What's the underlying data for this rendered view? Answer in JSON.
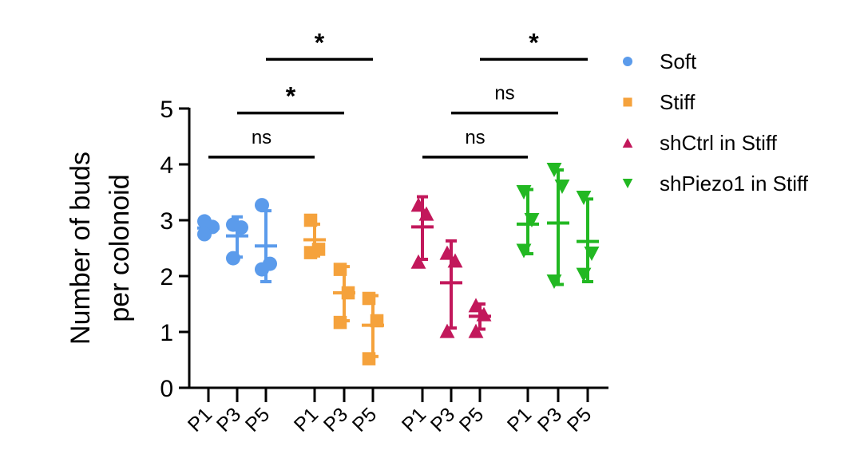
{
  "chart_data": {
    "type": "scatter",
    "title": "",
    "xlabel": "",
    "ylabel": "Number of buds per colonoid",
    "ylabel_lines": [
      "Number of buds",
      "per colonoid"
    ],
    "ylim": [
      0,
      5
    ],
    "yticks": [
      0,
      1,
      2,
      3,
      4,
      5
    ],
    "legend_position": "right",
    "groups": [
      {
        "name": "Soft",
        "color": "#5B9BEB",
        "marker": "circle",
        "conditions": [
          {
            "label": "P1",
            "points": [
              2.98,
              2.88,
              2.75
            ],
            "mean": 2.86,
            "sd_low": 2.86,
            "sd_high": 2.86
          },
          {
            "label": "P3",
            "points": [
              2.92,
              2.87,
              2.32
            ],
            "mean": 2.72,
            "sd_low": 2.34,
            "sd_high": 3.06
          },
          {
            "label": "P5",
            "points": [
              3.27,
              2.22,
              2.12
            ],
            "mean": 2.54,
            "sd_low": 1.9,
            "sd_high": 3.17
          }
        ]
      },
      {
        "name": "Stiff",
        "color": "#F5A23C",
        "marker": "square",
        "conditions": [
          {
            "label": "P1",
            "points": [
              3.0,
              2.48,
              2.42
            ],
            "mean": 2.65,
            "sd_low": 2.36,
            "sd_high": 2.93
          },
          {
            "label": "P3",
            "points": [
              2.12,
              1.7,
              1.17
            ],
            "mean": 1.7,
            "sd_low": 1.2,
            "sd_high": 2.17
          },
          {
            "label": "P5",
            "points": [
              1.6,
              1.2,
              0.52
            ],
            "mean": 1.12,
            "sd_low": 0.56,
            "sd_high": 1.65
          }
        ]
      },
      {
        "name": "shCtrl in Stiff",
        "color": "#C2185B",
        "marker": "triangle-up",
        "conditions": [
          {
            "label": "P1",
            "points": [
              3.28,
              3.12,
              2.26
            ],
            "mean": 2.88,
            "sd_low": 2.3,
            "sd_high": 3.42
          },
          {
            "label": "P3",
            "points": [
              2.42,
              2.28,
              1.02
            ],
            "mean": 1.88,
            "sd_low": 1.07,
            "sd_high": 2.63
          },
          {
            "label": "P5",
            "points": [
              1.48,
              1.32,
              1.02
            ],
            "mean": 1.28,
            "sd_low": 1.05,
            "sd_high": 1.5
          }
        ]
      },
      {
        "name": "shPiezo1 in Stiff",
        "color": "#22B822",
        "marker": "triangle-down",
        "conditions": [
          {
            "label": "P1",
            "points": [
              3.5,
              3.0,
              2.45
            ],
            "mean": 2.93,
            "sd_low": 2.4,
            "sd_high": 3.55
          },
          {
            "label": "P3",
            "points": [
              3.9,
              3.6,
              1.9
            ],
            "mean": 2.95,
            "sd_low": 1.85,
            "sd_high": 3.9
          },
          {
            "label": "P5",
            "points": [
              3.4,
              2.4,
              2.02
            ],
            "mean": 2.62,
            "sd_low": 1.9,
            "sd_high": 3.38
          }
        ]
      }
    ],
    "x_tick_labels": [
      "P1",
      "P3",
      "P5",
      "P1",
      "P3",
      "P5",
      "P1",
      "P3",
      "P5",
      "P1",
      "P3",
      "P5"
    ],
    "annotations": [
      {
        "label": "ns",
        "from_index": 0,
        "to_index": 3,
        "level": 4.13
      },
      {
        "label": "*",
        "from_index": 1,
        "to_index": 4,
        "level": 4.92
      },
      {
        "label": "*",
        "from_index": 2,
        "to_index": 5,
        "level": 5.88
      },
      {
        "label": "ns",
        "from_index": 6,
        "to_index": 9,
        "level": 4.13
      },
      {
        "label": "ns",
        "from_index": 7,
        "to_index": 10,
        "level": 4.92
      },
      {
        "label": "*",
        "from_index": 8,
        "to_index": 11,
        "level": 5.88
      }
    ]
  }
}
